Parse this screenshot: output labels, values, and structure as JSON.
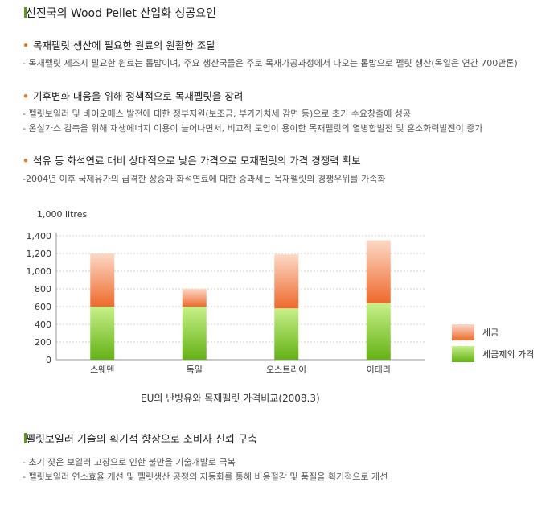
{
  "heading": {
    "title": "선진국의 Wood Pellet 산업화 성공요인"
  },
  "sections": [
    {
      "title": "목재펠릿 생산에 필요한 원료의 원활한 조달",
      "lines": [
        "- 목재펠릿 제조시 필요한 원료는 톱밥이며, 주요 생산국들은 주로 목재가공과정에서 나오는 톱밥으로 펠릿 생산(독일은 연간 700만톤)"
      ]
    },
    {
      "title": "기후변화 대응을 위해 정책적으로 목재펠릿을 장려",
      "lines": [
        "- 펠릿보일러 및 바이오매스 발전에 대한 정부지원(보조금, 부가가치세 감면 등)으로 초기 수요창출에 성공",
        "- 온실가스 감축을 위해 재생에너지 이용이 늘어나면서, 비교적 도입이 용이한 목재펠릿의 열병합발전 및 혼소화력발전이 증가"
      ]
    },
    {
      "title": "석유 등 화석연료 대비 상대적으로 낮은 가격으로 모재펠릿의 가격 경쟁력 확보",
      "lines": [
        "-2004년 이후 국제유가의 급격한 상승과 화석연료에 대한 중과세는 목재펠릿의 경쟁우위를 가속화"
      ]
    }
  ],
  "chart_data": {
    "type": "bar",
    "stacked": true,
    "unit_label": "1,000 litres",
    "categories": [
      "스웨덴",
      "독일",
      "오스트리아",
      "이태리"
    ],
    "series": [
      {
        "name": "세금제외 가격",
        "values": [
          600,
          600,
          580,
          640
        ],
        "color_top": "#c8f08a",
        "color_bottom": "#64b214"
      },
      {
        "name": "세금",
        "values": [
          600,
          200,
          610,
          710
        ],
        "color_top": "#fbd9c6",
        "color_bottom": "#ee6a2c"
      }
    ],
    "ylim": [
      0,
      1400
    ],
    "yticks": [
      "0",
      "200",
      "400",
      "600",
      "800",
      "1,000",
      "1,200",
      "1,400"
    ],
    "grid": true,
    "legend_position": "right",
    "legend_order": [
      "세금",
      "세금제외 가격"
    ],
    "caption": "EU의 난방유와 목재펠릿 가격비교(2008.3)"
  },
  "bottom": {
    "title": "펠릿보일러 기술의 획기적 향상으로 소비자 신뢰 구축",
    "lines": [
      "- 초기 잦은 보일러 고장으로 인한 불만을 기술개발로 극복",
      "- 펠릿보일러 연소효율 개선 및 펠릿생산 공정의 자동화를 통해 비용절감 및 품질을 획기적으로 개선"
    ]
  }
}
